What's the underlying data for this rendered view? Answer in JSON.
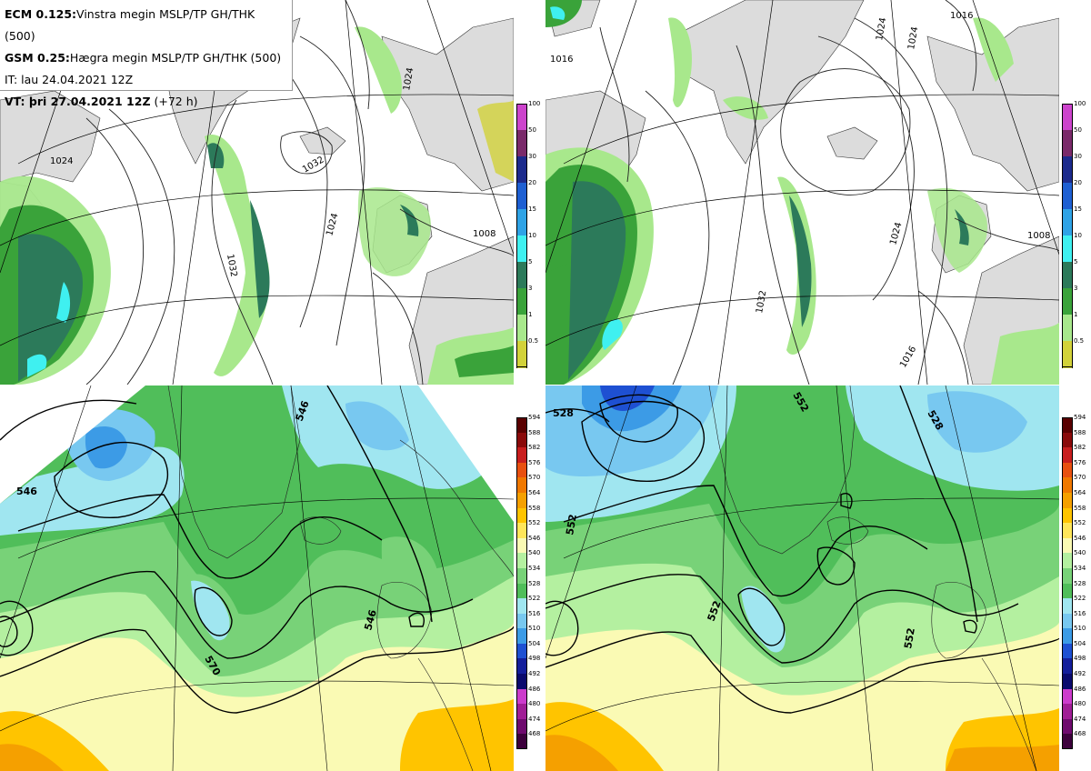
{
  "header": {
    "line1_model": "ECM 0.125:",
    "line1_text": "Vinstra megin MSLP/TP GH/THK (500)",
    "line2_model": "GSM 0.25:",
    "line2_text": "Hægra megin MSLP/TP GH/THK (500)",
    "line3": "IT: lau 24.04.2021 12Z",
    "line4_bold": "VT: þri 27.04.2021 12Z",
    "line4_rest": " (+72 h)"
  },
  "precip_scale": {
    "labels": [
      "100",
      "50",
      "30",
      "20",
      "15",
      "10",
      "5",
      "3",
      "1",
      "0.5"
    ],
    "colors": [
      "#cc44cc",
      "#7a2a6a",
      "#1c2a8c",
      "#1e5fd2",
      "#2fa3e6",
      "#3ff0f0",
      "#2c7a5a",
      "#3aa33a",
      "#a8e88c",
      "#d2d23a"
    ]
  },
  "thickness_scale": {
    "labels": [
      "594",
      "588",
      "582",
      "576",
      "570",
      "564",
      "558",
      "552",
      "546",
      "540",
      "534",
      "528",
      "522",
      "516",
      "510",
      "504",
      "498",
      "492",
      "486",
      "480",
      "474",
      "468"
    ],
    "colors": [
      "#5a0000",
      "#8a0a0a",
      "#c81e1e",
      "#e85010",
      "#f07800",
      "#f5a000",
      "#ffc400",
      "#ffe65a",
      "#fafab4",
      "#b4f0a0",
      "#78d278",
      "#50be5a",
      "#a0e6f0",
      "#78c8f0",
      "#3c9be6",
      "#1e50d2",
      "#141e9b",
      "#0a0a6e",
      "#cc3ccc",
      "#a01e96",
      "#6e0a6e",
      "#3c003c"
    ]
  },
  "mslp_labels": {
    "tl": [
      "1024",
      "1032",
      "1024",
      "1032",
      "1008",
      "1024"
    ],
    "tr": [
      "1016",
      "1024",
      "1016",
      "1024",
      "1032",
      "1008",
      "1016",
      "1024"
    ]
  },
  "gh_labels": {
    "bl": [
      "546",
      "546",
      "546",
      "570"
    ],
    "br": [
      "528",
      "552",
      "528",
      "552",
      "552",
      "552"
    ]
  }
}
